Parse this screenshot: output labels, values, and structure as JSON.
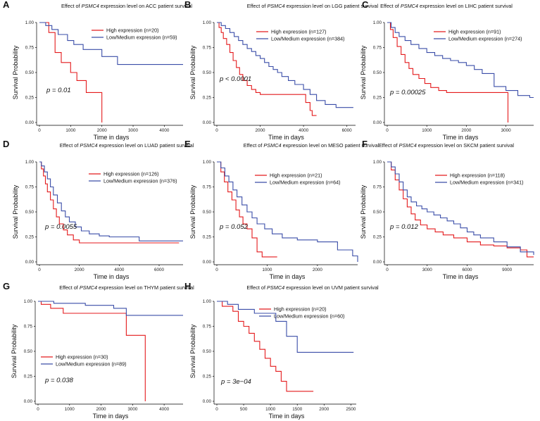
{
  "chart_data": [
    {
      "type": "line",
      "id": "A",
      "panel_label": "A",
      "title": {
        "pre": "Effect of ",
        "gene": "PSMC4",
        "post": " expression level on ACC patient survival"
      },
      "xlabel": "Time in days",
      "ylabel": "Survival Probability",
      "xlim": [
        0,
        4600
      ],
      "xticks": [
        0,
        1000,
        2000,
        3000,
        4000
      ],
      "xtick_labels": [
        "0",
        "1000",
        "2000",
        "3000",
        "4000"
      ],
      "ylim": [
        0,
        1
      ],
      "yticks": [
        0,
        0.25,
        0.5,
        0.75,
        1
      ],
      "ytick_labels": [
        "0.00",
        "0.25",
        "0.50",
        "0.75",
        "1.00"
      ],
      "pvalue": "p = 0.01",
      "legend_position": "top-right",
      "series": [
        {
          "name": "High expression (n=20)",
          "color": "#e41a1c",
          "times": [
            0,
            300,
            500,
            700,
            1000,
            1200,
            1500,
            2000
          ],
          "surv": [
            1,
            0.9,
            0.7,
            0.6,
            0.5,
            0.42,
            0.3,
            0
          ]
        },
        {
          "name": "Low/Medium expression (n=59)",
          "color": "#3a4da8",
          "times": [
            0,
            200,
            400,
            600,
            900,
            1100,
            1400,
            2000,
            2500,
            4600
          ],
          "surv": [
            1,
            0.97,
            0.93,
            0.88,
            0.82,
            0.78,
            0.73,
            0.66,
            0.58,
            0.58
          ]
        }
      ]
    },
    {
      "type": "line",
      "id": "B",
      "panel_label": "B",
      "title": {
        "pre": "Effect of ",
        "gene": "PSMC4",
        "post": " expression level on LGG patient survival"
      },
      "xlabel": "Time in days",
      "ylabel": "Survival Probability",
      "xlim": [
        0,
        6400
      ],
      "xticks": [
        0,
        2000,
        4000,
        6000
      ],
      "xtick_labels": [
        "0",
        "2000",
        "4000",
        "6000"
      ],
      "ylim": [
        0,
        1
      ],
      "yticks": [
        0,
        0.25,
        0.5,
        0.75,
        1
      ],
      "ytick_labels": [
        "0.00",
        "0.25",
        "0.50",
        "0.75",
        "1.00"
      ],
      "pvalue": "p < 0.0001",
      "legend_position": "top-right",
      "series": [
        {
          "name": "High expression (n=127)",
          "color": "#e41a1c",
          "times": [
            0,
            100,
            200,
            300,
            450,
            600,
            750,
            900,
            1050,
            1200,
            1400,
            1600,
            1800,
            2000,
            3500,
            4100,
            4300,
            4400,
            4600
          ],
          "surv": [
            1,
            0.95,
            0.9,
            0.84,
            0.78,
            0.7,
            0.62,
            0.55,
            0.48,
            0.42,
            0.37,
            0.33,
            0.3,
            0.28,
            0.28,
            0.2,
            0.12,
            0.07,
            0.07
          ]
        },
        {
          "name": "Low/Medium expression (n=384)",
          "color": "#3a4da8",
          "times": [
            0,
            200,
            400,
            600,
            800,
            1000,
            1200,
            1400,
            1600,
            1800,
            2000,
            2200,
            2400,
            2600,
            2800,
            3000,
            3300,
            3600,
            4000,
            4300,
            4600,
            5000,
            5500,
            6300
          ],
          "surv": [
            1,
            0.97,
            0.94,
            0.9,
            0.86,
            0.82,
            0.78,
            0.74,
            0.71,
            0.67,
            0.64,
            0.6,
            0.56,
            0.53,
            0.5,
            0.46,
            0.42,
            0.38,
            0.33,
            0.28,
            0.22,
            0.18,
            0.15,
            0.15
          ]
        }
      ]
    },
    {
      "type": "line",
      "id": "C",
      "panel_label": "C",
      "title": {
        "pre": "Effect of ",
        "gene": "PSMC4",
        "post": " expression level on LIHC patient survival"
      },
      "xlabel": "Time in days",
      "ylabel": "Survival Probability",
      "xlim": [
        0,
        3700
      ],
      "xticks": [
        0,
        1000,
        2000,
        3000
      ],
      "xtick_labels": [
        "0",
        "1000",
        "2000",
        "3000"
      ],
      "ylim": [
        0,
        1
      ],
      "yticks": [
        0,
        0.25,
        0.5,
        0.75,
        1
      ],
      "ytick_labels": [
        "0.00",
        "0.25",
        "0.50",
        "0.75",
        "1.00"
      ],
      "pvalue": "p = 0.00025",
      "legend_position": "top-right",
      "series": [
        {
          "name": "High expression (n=91)",
          "color": "#e41a1c",
          "times": [
            0,
            80,
            150,
            250,
            350,
            450,
            550,
            650,
            800,
            950,
            1100,
            1300,
            1500,
            3050
          ],
          "surv": [
            1,
            0.93,
            0.85,
            0.76,
            0.68,
            0.6,
            0.54,
            0.48,
            0.44,
            0.39,
            0.35,
            0.32,
            0.3,
            0
          ]
        },
        {
          "name": "Low/Medium expression (n=274)",
          "color": "#3a4da8",
          "times": [
            0,
            100,
            200,
            300,
            450,
            600,
            800,
            1000,
            1200,
            1400,
            1600,
            1800,
            2000,
            2200,
            2400,
            2700,
            3000,
            3300,
            3600,
            3700
          ],
          "surv": [
            1,
            0.95,
            0.9,
            0.86,
            0.82,
            0.78,
            0.74,
            0.7,
            0.67,
            0.64,
            0.62,
            0.6,
            0.57,
            0.53,
            0.49,
            0.36,
            0.32,
            0.27,
            0.25,
            0.25
          ]
        }
      ]
    },
    {
      "type": "line",
      "id": "D",
      "panel_label": "D",
      "title": {
        "pre": "Effect of ",
        "gene": "PSMC4",
        "post": " expression level on LUAD patient survival"
      },
      "xlabel": "Time in days",
      "ylabel": "Survival Probability",
      "xlim": [
        0,
        7200
      ],
      "xticks": [
        0,
        2000,
        4000,
        6000
      ],
      "xtick_labels": [
        "0",
        "2000",
        "4000",
        "6000"
      ],
      "ylim": [
        0,
        1
      ],
      "yticks": [
        0,
        0.25,
        0.5,
        0.75,
        1
      ],
      "ytick_labels": [
        "0.00",
        "0.25",
        "0.50",
        "0.75",
        "1.00"
      ],
      "pvalue": "p = 0.0055",
      "legend_position": "top-right",
      "series": [
        {
          "name": "High expression (n=126)",
          "color": "#e41a1c",
          "times": [
            0,
            100,
            200,
            300,
            400,
            550,
            700,
            850,
            1000,
            1200,
            1400,
            1700,
            2000,
            7000
          ],
          "surv": [
            1,
            0.93,
            0.86,
            0.78,
            0.7,
            0.62,
            0.53,
            0.45,
            0.38,
            0.32,
            0.27,
            0.22,
            0.19,
            0.19
          ]
        },
        {
          "name": "Low/Medium expression (n=376)",
          "color": "#3a4da8",
          "times": [
            0,
            100,
            250,
            400,
            550,
            700,
            900,
            1100,
            1300,
            1500,
            1800,
            2100,
            2500,
            3000,
            3500,
            4000,
            5000,
            7200
          ],
          "surv": [
            1,
            0.96,
            0.9,
            0.83,
            0.75,
            0.67,
            0.59,
            0.51,
            0.45,
            0.4,
            0.35,
            0.31,
            0.28,
            0.26,
            0.25,
            0.25,
            0.21,
            0.21
          ]
        }
      ]
    },
    {
      "type": "line",
      "id": "E",
      "panel_label": "E",
      "title": {
        "pre": "Effect of ",
        "gene": "PSMC4",
        "post": " expression level on MESO patient survival"
      },
      "xlabel": "Time in days",
      "ylabel": "Survival Probability",
      "xlim": [
        0,
        2800
      ],
      "xticks": [
        0,
        1000,
        2000
      ],
      "xtick_labels": [
        "0",
        "1000",
        "2000"
      ],
      "ylim": [
        0,
        1
      ],
      "yticks": [
        0,
        0.25,
        0.5,
        0.75,
        1
      ],
      "ytick_labels": [
        "0.00",
        "0.25",
        "0.50",
        "0.75",
        "1.00"
      ],
      "pvalue": "p = 0.052",
      "legend_position": "top-right",
      "series": [
        {
          "name": "High expression (n=21)",
          "color": "#e41a1c",
          "times": [
            0,
            80,
            150,
            220,
            300,
            380,
            450,
            520,
            600,
            700,
            800,
            900,
            1200
          ],
          "surv": [
            1,
            0.9,
            0.8,
            0.7,
            0.62,
            0.52,
            0.45,
            0.38,
            0.33,
            0.24,
            0.1,
            0.05,
            0.05
          ]
        },
        {
          "name": "Low/Medium expression (n=64)",
          "color": "#3a4da8",
          "times": [
            0,
            80,
            160,
            240,
            320,
            400,
            500,
            600,
            700,
            800,
            950,
            1100,
            1300,
            1600,
            2000,
            2400,
            2700,
            2800
          ],
          "surv": [
            1,
            0.94,
            0.86,
            0.8,
            0.72,
            0.65,
            0.57,
            0.5,
            0.44,
            0.38,
            0.33,
            0.28,
            0.24,
            0.22,
            0.2,
            0.12,
            0.06,
            0
          ]
        }
      ]
    },
    {
      "type": "line",
      "id": "F",
      "panel_label": "F",
      "title": {
        "pre": "Effect of ",
        "gene": "PSMC4",
        "post": " expression level on SKCM patient survival"
      },
      "xlabel": "Time in days",
      "ylabel": "Survival Probability",
      "xlim": [
        0,
        11000
      ],
      "xticks": [
        0,
        3000,
        6000,
        9000
      ],
      "xtick_labels": [
        "0",
        "3000",
        "6000",
        "9000"
      ],
      "ylim": [
        0,
        1
      ],
      "yticks": [
        0,
        0.25,
        0.5,
        0.75,
        1
      ],
      "ytick_labels": [
        "0.00",
        "0.25",
        "0.50",
        "0.75",
        "1.00"
      ],
      "pvalue": "p = 0.012",
      "legend_position": "top-right",
      "series": [
        {
          "name": "High expression (n=118)",
          "color": "#e41a1c",
          "times": [
            0,
            300,
            600,
            900,
            1200,
            1500,
            1800,
            2100,
            2500,
            3000,
            3600,
            4200,
            5000,
            6000,
            7000,
            8000,
            9000,
            10000,
            10500,
            11000
          ],
          "surv": [
            1,
            0.92,
            0.82,
            0.72,
            0.63,
            0.55,
            0.48,
            0.42,
            0.37,
            0.33,
            0.3,
            0.27,
            0.24,
            0.2,
            0.17,
            0.16,
            0.14,
            0.12,
            0.05,
            0.05
          ]
        },
        {
          "name": "Low/Medium expression (n=341)",
          "color": "#3a4da8",
          "times": [
            0,
            300,
            600,
            900,
            1200,
            1500,
            1800,
            2200,
            2600,
            3000,
            3500,
            4000,
            4500,
            5000,
            5500,
            6000,
            6500,
            7000,
            8000,
            9000,
            10000,
            11000
          ],
          "surv": [
            1,
            0.95,
            0.88,
            0.8,
            0.72,
            0.65,
            0.6,
            0.56,
            0.53,
            0.5,
            0.47,
            0.44,
            0.41,
            0.38,
            0.34,
            0.3,
            0.27,
            0.24,
            0.2,
            0.15,
            0.1,
            0.07
          ]
        }
      ]
    },
    {
      "type": "line",
      "id": "G",
      "panel_label": "G",
      "title": {
        "pre": "Effect of ",
        "gene": "PSMC4",
        "post": " expression level on THYM patient survival"
      },
      "xlabel": "Time in days",
      "ylabel": "Survival Probability",
      "xlim": [
        0,
        4600
      ],
      "xticks": [
        0,
        1000,
        2000,
        3000,
        4000
      ],
      "xtick_labels": [
        "0",
        "1000",
        "2000",
        "3000",
        "4000"
      ],
      "ylim": [
        0,
        1
      ],
      "yticks": [
        0,
        0.25,
        0.5,
        0.75,
        1
      ],
      "ytick_labels": [
        "0.00",
        "0.25",
        "0.50",
        "0.75",
        "1.00"
      ],
      "pvalue": "p = 0.038",
      "legend_position": "bottom-left",
      "series": [
        {
          "name": "High expression (n=30)",
          "color": "#e41a1c",
          "times": [
            0,
            100,
            400,
            800,
            2800,
            3400
          ],
          "surv": [
            1,
            0.97,
            0.93,
            0.88,
            0.66,
            0
          ]
        },
        {
          "name": "Low/Medium expression (n=89)",
          "color": "#3a4da8",
          "times": [
            0,
            500,
            1500,
            2400,
            2800,
            4600
          ],
          "surv": [
            1,
            0.98,
            0.96,
            0.93,
            0.86,
            0.86
          ]
        }
      ]
    },
    {
      "type": "line",
      "id": "H",
      "panel_label": "H",
      "title": {
        "pre": "Effect of ",
        "gene": "PSMC4",
        "post": " expression level on UVM patient survival"
      },
      "xlabel": "Time in days",
      "ylabel": "Survival Probability",
      "xlim": [
        0,
        2600
      ],
      "xticks": [
        0,
        500,
        1000,
        1500,
        2000,
        2500
      ],
      "xtick_labels": [
        "0",
        "500",
        "1000",
        "1500",
        "2000",
        "2500"
      ],
      "ylim": [
        0,
        1
      ],
      "yticks": [
        0,
        0.25,
        0.5,
        0.75,
        1
      ],
      "ytick_labels": [
        "0.00",
        "0.25",
        "0.50",
        "0.75",
        "1.00"
      ],
      "pvalue": "p = 3e−04",
      "legend_position": "top-right",
      "series": [
        {
          "name": "High expression (n=20)",
          "color": "#e41a1c",
          "times": [
            0,
            100,
            300,
            400,
            500,
            600,
            700,
            800,
            900,
            1000,
            1100,
            1200,
            1300,
            1800
          ],
          "surv": [
            1,
            0.95,
            0.9,
            0.8,
            0.75,
            0.68,
            0.6,
            0.52,
            0.43,
            0.35,
            0.3,
            0.2,
            0.1,
            0.1
          ]
        },
        {
          "name": "Low/Medium expression (n=60)",
          "color": "#3a4da8",
          "times": [
            0,
            200,
            400,
            700,
            1100,
            1300,
            1500,
            2550
          ],
          "surv": [
            1,
            0.97,
            0.92,
            0.88,
            0.8,
            0.65,
            0.49,
            0.49
          ]
        }
      ]
    }
  ]
}
